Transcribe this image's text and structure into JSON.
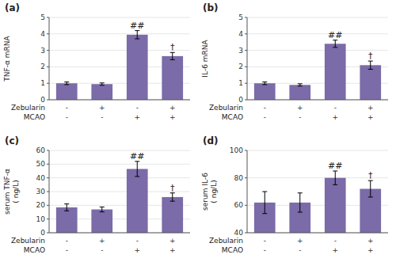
{
  "chart_data": [
    {
      "type": "bar",
      "title": "(a)",
      "ylabel": "TNF-α mRNA",
      "categories": [
        [
          "-",
          "-"
        ],
        [
          "+",
          "-"
        ],
        [
          "-",
          "+"
        ],
        [
          "+",
          "+"
        ]
      ],
      "xlabel": [
        "Zebularin",
        "MCAO"
      ],
      "values": [
        1.0,
        0.95,
        3.95,
        2.65
      ],
      "errors": [
        0.08,
        0.07,
        0.25,
        0.22
      ],
      "color": "#7B6BA8",
      "ylim": [
        0,
        5
      ],
      "yticks": [
        0,
        1,
        2,
        3,
        4,
        5
      ],
      "annotations": [
        {
          "text": "##",
          "index": 2
        },
        {
          "text": "†",
          "index": 3
        }
      ]
    },
    {
      "type": "bar",
      "title": "(b)",
      "ylabel": "IL-6 mRNA",
      "categories": [
        [
          "-",
          "-"
        ],
        [
          "+",
          "-"
        ],
        [
          "-",
          "+"
        ],
        [
          "+",
          "+"
        ]
      ],
      "xlabel": [
        "Zebularin",
        "MCAO"
      ],
      "values": [
        1.0,
        0.9,
        3.4,
        2.1
      ],
      "errors": [
        0.08,
        0.07,
        0.22,
        0.25
      ],
      "color": "#7B6BA8",
      "ylim": [
        0,
        5
      ],
      "yticks": [
        0,
        1,
        2,
        3,
        4,
        5
      ],
      "annotations": [
        {
          "text": "##",
          "index": 2
        },
        {
          "text": "†",
          "index": 3
        }
      ]
    },
    {
      "type": "bar",
      "title": "(c)",
      "ylabel": "serum TNF-α\n( ng/L)",
      "categories": [
        [
          "-",
          "-"
        ],
        [
          "+",
          "-"
        ],
        [
          "-",
          "+"
        ],
        [
          "+",
          "+"
        ]
      ],
      "xlabel": [
        "Zebularin",
        "MCAO"
      ],
      "values": [
        18.5,
        17.0,
        46.5,
        26.0
      ],
      "errors": [
        2.5,
        1.8,
        5.5,
        3.0
      ],
      "color": "#7B6BA8",
      "ylim": [
        0,
        60
      ],
      "yticks": [
        0,
        10,
        20,
        30,
        40,
        50,
        60
      ],
      "annotations": [
        {
          "text": "##",
          "index": 2
        },
        {
          "text": "†",
          "index": 3
        }
      ]
    },
    {
      "type": "bar",
      "title": "(d)",
      "ylabel": "serum IL-6\n( ng/L)",
      "categories": [
        [
          "-",
          "-"
        ],
        [
          "+",
          "-"
        ],
        [
          "-",
          "+"
        ],
        [
          "+",
          "+"
        ]
      ],
      "xlabel": [
        "Zebularin",
        "MCAO"
      ],
      "values": [
        62,
        62,
        80,
        72
      ],
      "errors": [
        8,
        7,
        5,
        6
      ],
      "color": "#7B6BA8",
      "ylim": [
        40,
        100
      ],
      "yticks": [
        40,
        60,
        80,
        100
      ],
      "annotations": [
        {
          "text": "##",
          "index": 2
        },
        {
          "text": "†",
          "index": 3
        }
      ]
    }
  ]
}
